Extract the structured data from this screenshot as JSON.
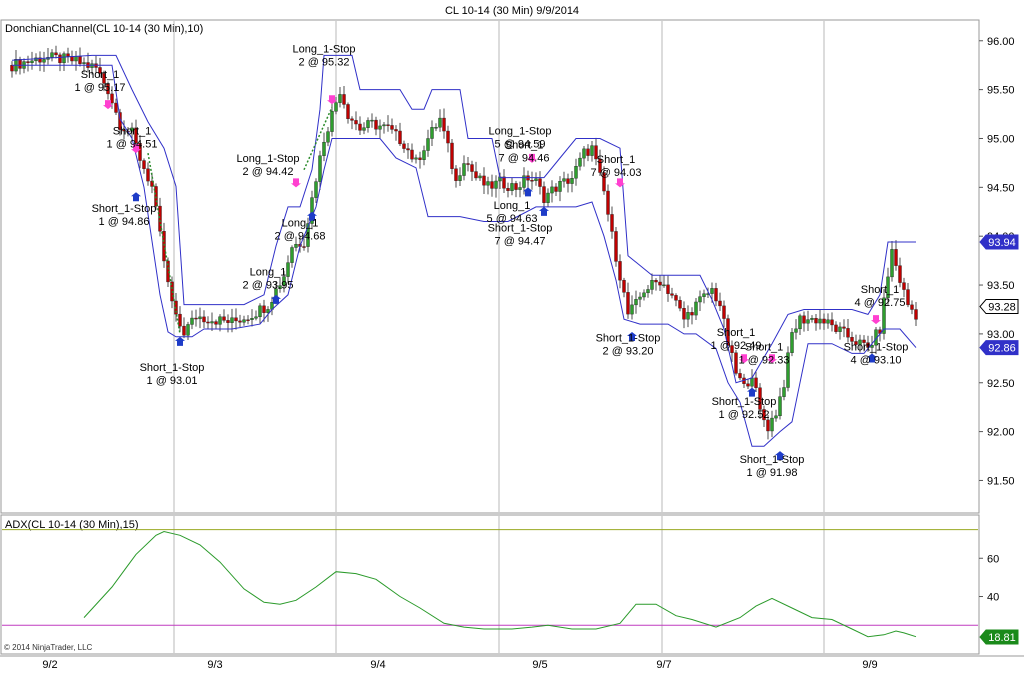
{
  "window_title": "CL 10-14 (30 Min)  9/9/2014",
  "copyright": "© 2014 NinjaTrader, LLC",
  "colors": {
    "up_candle": "#2e9e2e",
    "down_candle": "#c00000",
    "channel": "#3030c8",
    "adx_line": "#2a9a2a",
    "adx_upper": "#9aaa22",
    "adx_lower": "#c03cc0",
    "buy_arrow": "#1e3cc8",
    "sell_arrow": "#ff40d0",
    "trade_line": "#2a8a2a",
    "session_line": "#b8b8b8"
  },
  "chart_data": [
    {
      "type": "candlestick",
      "title": "DonchianChannel(CL 10-14 (30 Min),10)",
      "ylim": [
        91.3,
        96.1
      ],
      "y_ticks": [
        "96.00",
        "95.50",
        "95.00",
        "94.50",
        "94.00",
        "93.50",
        "93.00",
        "92.50",
        "92.00",
        "91.50"
      ],
      "x_ticks": [
        "9/2",
        "9/3",
        "9/4",
        "9/5",
        "9/7",
        "9/9"
      ],
      "price_badges": [
        {
          "label": "93.94",
          "value": 93.94,
          "style": "channel"
        },
        {
          "label": "93.28",
          "value": 93.28,
          "style": "last"
        },
        {
          "label": "92.86",
          "value": 92.86,
          "style": "channel"
        }
      ],
      "close_path": [
        [
          0,
          95.75
        ],
        [
          8,
          95.83
        ],
        [
          15,
          95.8
        ],
        [
          21,
          95.72
        ],
        [
          24,
          95.5
        ],
        [
          27,
          95.15
        ],
        [
          30,
          95.05
        ],
        [
          32,
          94.8
        ],
        [
          35,
          94.5
        ],
        [
          37,
          94.0
        ],
        [
          39,
          93.5
        ],
        [
          41,
          93.15
        ],
        [
          43,
          93.02
        ],
        [
          46,
          93.18
        ],
        [
          50,
          93.15
        ],
        [
          55,
          93.12
        ],
        [
          60,
          93.2
        ],
        [
          64,
          93.3
        ],
        [
          68,
          93.6
        ],
        [
          70,
          93.9
        ],
        [
          73,
          93.95
        ],
        [
          76,
          94.6
        ],
        [
          78,
          95.0
        ],
        [
          80,
          95.25
        ],
        [
          82,
          95.5
        ],
        [
          84,
          95.25
        ],
        [
          87,
          95.1
        ],
        [
          90,
          95.15
        ],
        [
          94,
          95.1
        ],
        [
          98,
          94.95
        ],
        [
          101,
          94.75
        ],
        [
          104,
          95.0
        ],
        [
          107,
          95.2
        ],
        [
          109,
          94.9
        ],
        [
          111,
          94.55
        ],
        [
          113,
          94.8
        ],
        [
          116,
          94.6
        ],
        [
          119,
          94.5
        ],
        [
          122,
          94.55
        ],
        [
          126,
          94.5
        ],
        [
          129,
          94.6
        ],
        [
          131,
          94.55
        ],
        [
          133,
          94.4
        ],
        [
          136,
          94.5
        ],
        [
          140,
          94.6
        ],
        [
          143,
          94.85
        ],
        [
          145,
          94.9
        ],
        [
          148,
          94.45
        ],
        [
          150,
          94.0
        ],
        [
          152,
          93.6
        ],
        [
          154,
          93.2
        ],
        [
          156,
          93.3
        ],
        [
          158,
          93.45
        ],
        [
          162,
          93.55
        ],
        [
          165,
          93.4
        ],
        [
          168,
          93.15
        ],
        [
          171,
          93.3
        ],
        [
          175,
          93.45
        ],
        [
          177,
          93.3
        ],
        [
          179,
          92.9
        ],
        [
          181,
          92.6
        ],
        [
          183,
          92.45
        ],
        [
          185,
          92.6
        ],
        [
          187,
          92.2
        ],
        [
          189,
          92.05
        ],
        [
          191,
          92.2
        ],
        [
          193,
          92.5
        ],
        [
          195,
          93.0
        ],
        [
          197,
          93.15
        ],
        [
          202,
          93.15
        ],
        [
          206,
          93.05
        ],
        [
          210,
          92.95
        ],
        [
          214,
          92.85
        ],
        [
          217,
          93.05
        ],
        [
          219,
          93.6
        ],
        [
          220,
          93.85
        ],
        [
          222,
          93.55
        ],
        [
          224,
          93.3
        ],
        [
          226,
          93.2
        ]
      ],
      "channel_upper": [
        [
          0,
          95.8
        ],
        [
          20,
          95.85
        ],
        [
          26,
          95.85
        ],
        [
          30,
          95.5
        ],
        [
          34,
          95.17
        ],
        [
          38,
          94.9
        ],
        [
          41,
          94.51
        ],
        [
          43,
          93.3
        ],
        [
          58,
          93.3
        ],
        [
          63,
          93.4
        ],
        [
          66,
          93.9
        ],
        [
          69,
          94.3
        ],
        [
          72,
          94.3
        ],
        [
          75,
          94.68
        ],
        [
          77,
          95.3
        ],
        [
          78,
          95.85
        ],
        [
          85,
          95.85
        ],
        [
          87,
          95.5
        ],
        [
          97,
          95.5
        ],
        [
          100,
          95.3
        ],
        [
          103,
          95.3
        ],
        [
          105,
          95.5
        ],
        [
          112,
          95.5
        ],
        [
          114,
          95.0
        ],
        [
          120,
          95.0
        ],
        [
          122,
          94.6
        ],
        [
          133,
          94.6
        ],
        [
          137,
          94.8
        ],
        [
          141,
          95.0
        ],
        [
          147,
          95.0
        ],
        [
          152,
          94.9
        ],
        [
          154,
          93.8
        ],
        [
          160,
          93.6
        ],
        [
          163,
          93.6
        ],
        [
          172,
          93.6
        ],
        [
          175,
          93.35
        ],
        [
          178,
          93.05
        ],
        [
          181,
          92.5
        ],
        [
          185,
          92.55
        ],
        [
          190,
          92.9
        ],
        [
          194,
          93.2
        ],
        [
          198,
          93.25
        ],
        [
          210,
          93.25
        ],
        [
          214,
          93.2
        ],
        [
          217,
          93.4
        ],
        [
          219,
          93.94
        ],
        [
          226,
          93.94
        ]
      ],
      "channel_lower": [
        [
          0,
          95.75
        ],
        [
          25,
          95.75
        ],
        [
          27,
          95.2
        ],
        [
          30,
          95.0
        ],
        [
          33,
          94.5
        ],
        [
          35,
          93.95
        ],
        [
          37,
          93.4
        ],
        [
          39,
          93.02
        ],
        [
          41,
          92.97
        ],
        [
          45,
          92.97
        ],
        [
          48,
          93.05
        ],
        [
          55,
          93.05
        ],
        [
          62,
          93.1
        ],
        [
          65,
          93.25
        ],
        [
          69,
          93.4
        ],
        [
          72,
          93.9
        ],
        [
          76,
          94.3
        ],
        [
          78,
          94.68
        ],
        [
          80,
          95.0
        ],
        [
          88,
          95.0
        ],
        [
          92,
          95.0
        ],
        [
          96,
          94.8
        ],
        [
          101,
          94.7
        ],
        [
          104,
          94.2
        ],
        [
          108,
          94.2
        ],
        [
          112,
          94.2
        ],
        [
          118,
          94.15
        ],
        [
          124,
          94.15
        ],
        [
          131,
          94.3
        ],
        [
          137,
          94.3
        ],
        [
          141,
          94.3
        ],
        [
          145,
          94.35
        ],
        [
          148,
          94.0
        ],
        [
          151,
          93.55
        ],
        [
          153,
          93.15
        ],
        [
          157,
          93.1
        ],
        [
          164,
          93.1
        ],
        [
          168,
          93.0
        ],
        [
          171,
          93.0
        ],
        [
          176,
          92.85
        ],
        [
          179,
          92.5
        ],
        [
          182,
          92.3
        ],
        [
          185,
          91.85
        ],
        [
          188,
          91.85
        ],
        [
          192,
          92.0
        ],
        [
          195,
          92.1
        ],
        [
          197,
          92.5
        ],
        [
          199,
          92.9
        ],
        [
          205,
          92.9
        ],
        [
          210,
          92.8
        ],
        [
          213,
          92.8
        ],
        [
          218,
          93.05
        ],
        [
          222,
          93.05
        ],
        [
          226,
          92.86
        ]
      ],
      "trade_links": [
        {
          "from": [
            34,
            94.85
          ],
          "to": [
            42,
            93.0
          ]
        },
        {
          "from": [
            73,
            94.68
          ],
          "to": [
            80,
            95.32
          ]
        }
      ],
      "markers": [
        {
          "dir": "down",
          "bar": 24,
          "y": 95.3
        },
        {
          "dir": "down",
          "bar": 31,
          "y": 94.85
        },
        {
          "dir": "up",
          "bar": 31,
          "y": 94.45
        },
        {
          "dir": "up",
          "bar": 42,
          "y": 92.97
        },
        {
          "dir": "down",
          "bar": 71,
          "y": 94.5
        },
        {
          "dir": "up",
          "bar": 75,
          "y": 94.25
        },
        {
          "dir": "up",
          "bar": 66,
          "y": 93.4
        },
        {
          "dir": "down",
          "bar": 80,
          "y": 95.35
        },
        {
          "dir": "down",
          "bar": 130,
          "y": 94.75
        },
        {
          "dir": "up",
          "bar": 129,
          "y": 94.5
        },
        {
          "dir": "up",
          "bar": 133,
          "y": 94.3
        },
        {
          "dir": "down",
          "bar": 152,
          "y": 94.5
        },
        {
          "dir": "up",
          "bar": 155,
          "y": 93.02
        },
        {
          "dir": "down",
          "bar": 183,
          "y": 92.7
        },
        {
          "dir": "down",
          "bar": 190,
          "y": 92.7
        },
        {
          "dir": "up",
          "bar": 185,
          "y": 92.45
        },
        {
          "dir": "up",
          "bar": 192,
          "y": 91.8
        },
        {
          "dir": "down",
          "bar": 216,
          "y": 93.1
        },
        {
          "dir": "up",
          "bar": 215,
          "y": 92.8
        }
      ],
      "annotations": [
        {
          "lines": [
            "Short_1",
            "1 @ 95.17"
          ],
          "bar": 22,
          "y": 95.62
        },
        {
          "lines": [
            "Short_1",
            "1 @ 94.51"
          ],
          "bar": 30,
          "y": 95.04
        },
        {
          "lines": [
            "Short_1-Stop",
            "1 @ 94.86"
          ],
          "bar": 28,
          "y": 94.25
        },
        {
          "lines": [
            "Short_1-Stop",
            "1 @ 93.01"
          ],
          "bar": 40,
          "y": 92.62
        },
        {
          "lines": [
            "Long_1-Stop",
            "2 @ 95.32"
          ],
          "bar": 78,
          "y": 95.88
        },
        {
          "lines": [
            "Long_1-Stop",
            "2 @ 94.42"
          ],
          "bar": 64,
          "y": 94.76
        },
        {
          "lines": [
            "Long_1",
            "2 @ 94.68"
          ],
          "bar": 72,
          "y": 94.1
        },
        {
          "lines": [
            "Long_1",
            "2 @ 93.95"
          ],
          "bar": 64,
          "y": 93.6
        },
        {
          "lines": [
            "Long_1-Stop",
            "5 @ 94.59"
          ],
          "bar": 127,
          "y": 95.04
        },
        {
          "lines": [
            "Short_1",
            "7 @ 94.46"
          ],
          "bar": 128,
          "y": 94.9
        },
        {
          "lines": [
            "Long_1",
            "5 @ 94.63"
          ],
          "bar": 125,
          "y": 94.28
        },
        {
          "lines": [
            "Short_1-Stop",
            "7 @ 94.47"
          ],
          "bar": 127,
          "y": 94.05
        },
        {
          "lines": [
            "Short_1",
            "7 @ 94.03"
          ],
          "bar": 151,
          "y": 94.75
        },
        {
          "lines": [
            "Short_1-Stop",
            "2 @ 93.20"
          ],
          "bar": 154,
          "y": 92.92
        },
        {
          "lines": [
            "Short_1",
            "1 @ 92.49"
          ],
          "bar": 181,
          "y": 92.98
        },
        {
          "lines": [
            "Short_1",
            "1 @ 92.33"
          ],
          "bar": 188,
          "y": 92.83
        },
        {
          "lines": [
            "Short_1-Stop",
            "1 @ 92.52"
          ],
          "bar": 183,
          "y": 92.27
        },
        {
          "lines": [
            "Short_1-Stop",
            "1 @ 91.98"
          ],
          "bar": 190,
          "y": 91.68
        },
        {
          "lines": [
            "Short_1",
            "4 @ 92.75"
          ],
          "bar": 217,
          "y": 93.42
        },
        {
          "lines": [
            "Short_1-Stop",
            "4 @ 93.10"
          ],
          "bar": 216,
          "y": 92.83
        }
      ]
    },
    {
      "type": "line",
      "title": "ADX(CL 10-14 (30 Min),15)",
      "ylim": [
        11,
        80
      ],
      "y_ticks": [
        "60",
        "40"
      ],
      "levels": [
        75,
        25
      ],
      "last_value_label": "18.81",
      "last_value": 18.81,
      "series": [
        {
          "values": [
            [
              18,
              29
            ],
            [
              25,
              45
            ],
            [
              31,
              62
            ],
            [
              36,
              72
            ],
            [
              38,
              74
            ],
            [
              42,
              72
            ],
            [
              47,
              67
            ],
            [
              52,
              58
            ],
            [
              58,
              44
            ],
            [
              63,
              37
            ],
            [
              67,
              36
            ],
            [
              71,
              38
            ],
            [
              76,
              45
            ],
            [
              81,
              53
            ],
            [
              86,
              52
            ],
            [
              91,
              49
            ],
            [
              97,
              40
            ],
            [
              102,
              34
            ],
            [
              108,
              26
            ],
            [
              113,
              24
            ],
            [
              118,
              23
            ],
            [
              125,
              23
            ],
            [
              130,
              24
            ],
            [
              134,
              25
            ],
            [
              140,
              23
            ],
            [
              146,
              23
            ],
            [
              152,
              26
            ],
            [
              156,
              36
            ],
            [
              161,
              36
            ],
            [
              166,
              30
            ],
            [
              170,
              28
            ],
            [
              176,
              24
            ],
            [
              182,
              29
            ],
            [
              186,
              35
            ],
            [
              190,
              39
            ],
            [
              195,
              34
            ],
            [
              200,
              29
            ],
            [
              205,
              28
            ],
            [
              210,
              23
            ],
            [
              214,
              19
            ],
            [
              218,
              20
            ],
            [
              221,
              22
            ],
            [
              223,
              21
            ],
            [
              226,
              19
            ]
          ]
        }
      ]
    }
  ]
}
